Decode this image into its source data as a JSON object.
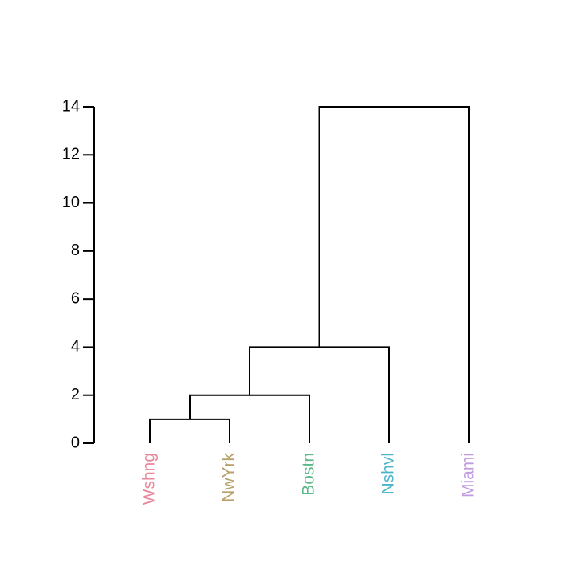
{
  "chart_data": {
    "type": "dendrogram",
    "title": "",
    "xlabel": "",
    "ylabel": "",
    "ylim": [
      0,
      14
    ],
    "y_ticks": [
      0,
      2,
      4,
      6,
      8,
      10,
      12,
      14
    ],
    "y_tick_labels": [
      "0",
      "2",
      "4",
      "6",
      "8",
      "10",
      "12",
      "14"
    ],
    "leaves": [
      {
        "label": "Wshng",
        "color": "#e8879b"
      },
      {
        "label": "NwYrk",
        "color": "#b8a06a"
      },
      {
        "label": "Bostn",
        "color": "#5cb888"
      },
      {
        "label": "Nshvl",
        "color": "#4ab5c8"
      },
      {
        "label": "Miami",
        "color": "#c39be0"
      }
    ],
    "merges": [
      {
        "left": "Wshng",
        "right": "NwYrk",
        "height": 1
      },
      {
        "left": "Wshng+NwYrk",
        "right": "Bostn",
        "height": 2
      },
      {
        "left": "Wshng+NwYrk+Bostn",
        "right": "Nshvl",
        "height": 4
      },
      {
        "left": "Wshng+NwYrk+Bostn+Nshvl",
        "right": "Miami",
        "height": 14
      }
    ]
  }
}
